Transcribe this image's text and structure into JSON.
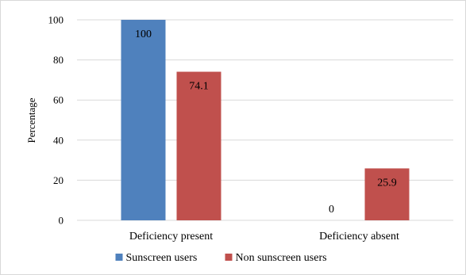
{
  "chart_data": {
    "type": "bar",
    "title": "",
    "xlabel": "",
    "ylabel": "Percentage",
    "ylim": [
      0,
      100
    ],
    "yticks": [
      0,
      20,
      40,
      60,
      80,
      100
    ],
    "grid": true,
    "legend_position": "bottom",
    "categories": [
      "Deficiency present",
      "Deficiency absent"
    ],
    "series": [
      {
        "name": "Sunscreen users",
        "color": "#4f81bd",
        "values": [
          100,
          0
        ],
        "labels": [
          "100",
          "0"
        ]
      },
      {
        "name": "Non sunscreen users",
        "color": "#c0504d",
        "values": [
          74.1,
          25.9
        ],
        "labels": [
          "74.1",
          "25.9"
        ]
      }
    ]
  }
}
